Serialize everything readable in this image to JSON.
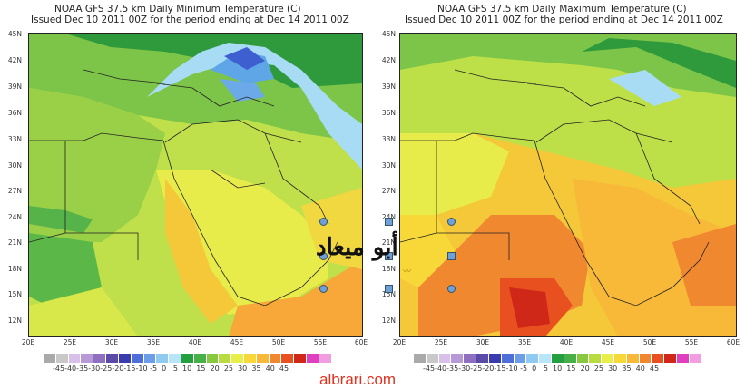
{
  "left": {
    "title": "NOAA GFS 37.5 km Daily Minimum Temperature (C)",
    "subtitle": "Issued Dec 10 2011 00Z for the period ending at Dec 14 2011 00Z"
  },
  "right": {
    "title": "NOAA GFS 37.5 km Daily Maximum Temperature (C)",
    "subtitle": "Issued Dec 10 2011 00Z for the period ending at Dec 14 2011 00Z"
  },
  "lat_labels": [
    "45N",
    "42N",
    "39N",
    "36N",
    "33N",
    "30N",
    "27N",
    "24N",
    "21N",
    "18N",
    "15N",
    "12N"
  ],
  "lon_labels": [
    "20E",
    "25E",
    "30E",
    "35E",
    "40E",
    "45E",
    "50E",
    "55E",
    "60E"
  ],
  "colorbar_labels": "-45-40-35-30-25-20-15-10 -5  0   5  10  15  20  25  30  35  40  45",
  "colorbar_colors": [
    "#aaaaaa",
    "#c9c9c9",
    "#d8c0e8",
    "#b899d8",
    "#8f6fc0",
    "#5b4aa8",
    "#3b3bb0",
    "#4f6fd8",
    "#6b9de8",
    "#8fcbf0",
    "#b8e6f8",
    "#24a040",
    "#48b048",
    "#88c840",
    "#b8dc40",
    "#e8f048",
    "#f8d838",
    "#f8b838",
    "#f08830",
    "#e85020",
    "#d02818",
    "#e040c0",
    "#f09ee0"
  ],
  "watermark": "أبو ميعاد",
  "footer": "albrari.com"
}
